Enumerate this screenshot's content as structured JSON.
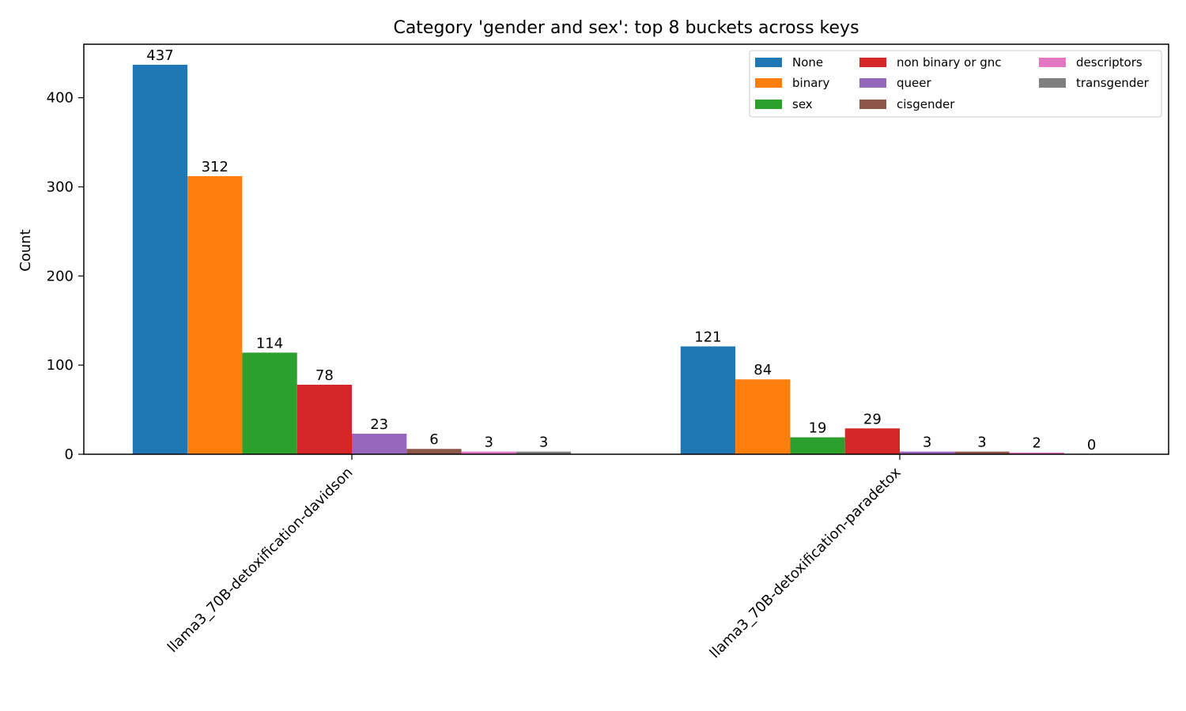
{
  "chart_data": {
    "type": "bar",
    "title": "Category 'gender and sex': top 8 buckets across keys",
    "xlabel": "",
    "ylabel": "Count",
    "categories": [
      "llama3_70B-detoxification-davidson",
      "llama3_70B-detoxification-paradetox"
    ],
    "ylim": [
      0,
      460
    ],
    "yticks": [
      0,
      100,
      200,
      300,
      400
    ],
    "grid": false,
    "legend_position": "top-right",
    "legend_columns": 3,
    "series": [
      {
        "name": "None",
        "color": "#1f77b4",
        "values": [
          437,
          121
        ]
      },
      {
        "name": "binary",
        "color": "#ff7f0e",
        "values": [
          312,
          84
        ]
      },
      {
        "name": "sex",
        "color": "#2ca02c",
        "values": [
          114,
          19
        ]
      },
      {
        "name": "non binary or gnc",
        "color": "#d62728",
        "values": [
          78,
          29
        ]
      },
      {
        "name": "queer",
        "color": "#9467bd",
        "values": [
          23,
          3
        ]
      },
      {
        "name": "cisgender",
        "color": "#8c564b",
        "values": [
          6,
          3
        ]
      },
      {
        "name": "descriptors",
        "color": "#e377c2",
        "values": [
          3,
          2
        ]
      },
      {
        "name": "transgender",
        "color": "#7f7f7f",
        "values": [
          3,
          0
        ]
      }
    ]
  }
}
